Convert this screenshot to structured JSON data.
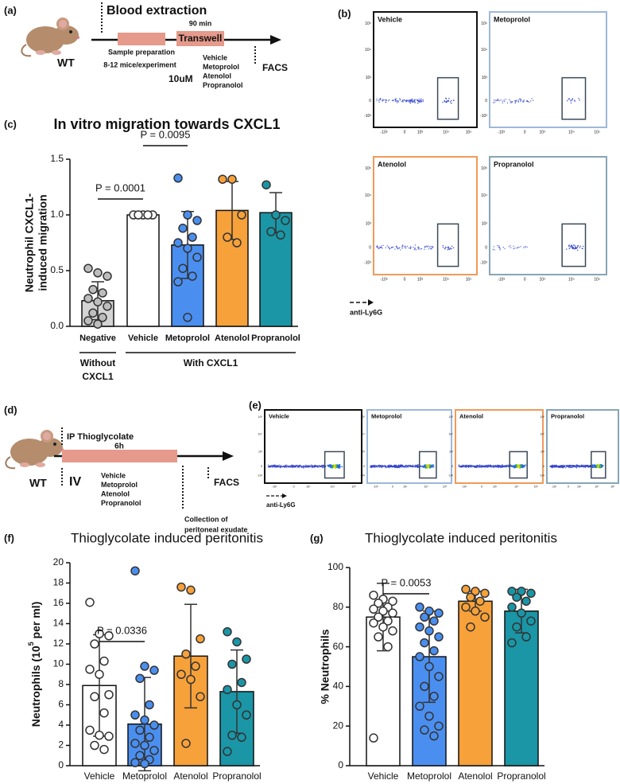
{
  "panel_a": {
    "label": "(a)",
    "title": "Blood extraction",
    "strain": "WT",
    "step1": "Sample preparation",
    "step1_note": "8-12 mice/experiment",
    "step2": "Transwell",
    "step2_time": "90 min",
    "dose": "10uM",
    "treatments": [
      "Vehicle",
      "Metoprolol",
      "Atenolol",
      "Propranolol"
    ],
    "readout": "FACS"
  },
  "panel_b": {
    "label": "(b)",
    "plots": [
      {
        "name": "Vehicle",
        "color": "#111111"
      },
      {
        "name": "Metoprolol",
        "color": "#9db8da"
      },
      {
        "name": "Atenolol",
        "color": "#ef9a5a"
      },
      {
        "name": "Propranolol",
        "color": "#86a6b6"
      }
    ],
    "y_ticks": [
      "10⁵",
      "10⁴",
      "10³",
      "0",
      "-10³"
    ],
    "x_ticks": [
      "-10³",
      "0",
      "10³",
      "10⁴",
      "10⁵"
    ],
    "axis_label": "anti-Ly6G"
  },
  "panel_d": {
    "label": "(d)",
    "injection": "IP Thioglycolate",
    "duration": "6h",
    "strain": "WT",
    "route": "IV",
    "treatments": [
      "Vehicle",
      "Metoprolol",
      "Atenolol",
      "Propranolol"
    ],
    "collection": [
      "Collection of",
      "peritoneal exudate"
    ],
    "readout": "FACS"
  },
  "panel_e": {
    "label": "(e)",
    "plots": [
      {
        "name": "Vehicle",
        "color": "#111111"
      },
      {
        "name": "Metoprolol",
        "color": "#9db8da"
      },
      {
        "name": "Atenolol",
        "color": "#ef9a5a"
      },
      {
        "name": "Propranolol",
        "color": "#86a6b6"
      }
    ],
    "y_ticks": [
      "10⁵",
      "10⁴",
      "10³",
      "0",
      "-10³"
    ],
    "x_ticks": [
      "-10³",
      "0",
      "10³",
      "10⁴",
      "10⁵"
    ],
    "axis_label": "anti-Ly6G"
  },
  "chart_data": [
    {
      "type": "bar",
      "panel_label": "(c)",
      "title": "In vitro migration towards CXCL1",
      "y_label_lines": [
        "Neutrophil CXCL1-",
        "induced migration"
      ],
      "categories": [
        "Negative",
        "Vehicle",
        "Metoprolol",
        "Atenolol",
        "Propranolol"
      ],
      "values": [
        0.23,
        1.0,
        0.73,
        1.04,
        1.02
      ],
      "errors": [
        0.17,
        0,
        0.3,
        0.26,
        0.18
      ],
      "colors": [
        "#d4d4d4",
        "#ffffff",
        "#4a8ff0",
        "#f7a13a",
        "#1a96a6"
      ],
      "points": [
        [
          0.52,
          0.48,
          0.45,
          0.33,
          0.3,
          0.25,
          0.22,
          0.18,
          0.12,
          0.08,
          0.05,
          0.02
        ],
        [
          1.0,
          1.0,
          1.0,
          1.0,
          1.0
        ],
        [
          1.33,
          1.0,
          0.95,
          0.88,
          0.8,
          0.75,
          0.7,
          0.62,
          0.52,
          0.45,
          0.4,
          0.08
        ],
        [
          1.32,
          1.32,
          1.0,
          0.8,
          0.75
        ],
        [
          1.27,
          1.0,
          0.95,
          0.85,
          0.82
        ]
      ],
      "ylim": [
        0,
        1.5
      ],
      "yticks": [
        {
          "value": 0,
          "label": "0.0"
        },
        0.5,
        {
          "value": 1,
          "label": "1.0"
        },
        1.5
      ],
      "annotations": [
        "P = 0.0001",
        "P = 0.0095"
      ],
      "group_labels": [
        [
          "Without",
          "CXCL1"
        ],
        [
          "With CXCL1"
        ]
      ]
    },
    {
      "type": "bar",
      "panel_label": "(f)",
      "title": "Thioglycolate induced peritonitis",
      "y_label_parts": [
        "Neutrophils (10",
        "5",
        " per ml)"
      ],
      "categories": [
        "Vehicle",
        "Metoprolol",
        "Atenolol",
        "Propranolol"
      ],
      "values": [
        7.9,
        4.1,
        10.8,
        7.3
      ],
      "errors": [
        5.0,
        4.6,
        5.1,
        4.1
      ],
      "colors": [
        "#ffffff",
        "#4a8ff0",
        "#f7a13a",
        "#1a96a6"
      ],
      "points": [
        [
          16.1,
          13.0,
          12.8,
          12.0,
          10.3,
          9.5,
          9.0,
          7.0,
          6.8,
          5.2,
          3.5,
          3.0,
          2.9,
          2.0,
          1.6
        ],
        [
          19.2,
          9.8,
          9.4,
          8.6,
          6.0,
          5.0,
          4.5,
          4.0,
          3.5,
          2.8,
          2.2,
          2.0,
          1.5,
          1.0,
          0.6,
          0.3,
          0.2
        ],
        [
          17.6,
          17.3,
          12.5,
          11.0,
          9.8,
          9.0,
          8.5,
          6.8,
          2.2
        ],
        [
          13.2,
          12.2,
          10.5,
          10.0,
          8.2,
          7.5,
          6.0,
          5.0,
          3.0,
          2.8,
          1.4
        ]
      ],
      "ylim": [
        0,
        20
      ],
      "yticks": [
        0,
        2,
        4,
        6,
        8,
        10,
        12,
        14,
        16,
        18,
        20
      ],
      "annotations": [
        "P = 0.0336"
      ]
    },
    {
      "type": "bar",
      "panel_label": "(g)",
      "title": "Thioglycolate induced peritonitis",
      "y_label": "% Neutrophils",
      "categories": [
        "Vehicle",
        "Metoprolol",
        "Atenolol",
        "Propranolol"
      ],
      "values": [
        75,
        55,
        83,
        78
      ],
      "errors": [
        17,
        23,
        5,
        11
      ],
      "colors": [
        "#ffffff",
        "#4a8ff0",
        "#f7a13a",
        "#1a96a6"
      ],
      "points": [
        [
          86,
          84,
          83,
          82,
          80,
          79,
          78,
          77,
          75,
          73,
          72,
          70,
          68,
          65,
          60,
          14
        ],
        [
          80,
          78,
          77,
          75,
          73,
          70,
          68,
          65,
          62,
          58,
          55,
          50,
          45,
          40,
          35,
          30,
          25,
          20,
          18,
          15
        ],
        [
          89,
          88,
          87,
          85,
          83,
          80,
          78,
          75,
          70
        ],
        [
          88,
          88,
          87,
          85,
          83,
          80,
          77,
          73,
          70,
          65,
          62
        ]
      ],
      "ylim": [
        0,
        100
      ],
      "yticks": [
        0,
        20,
        40,
        60,
        80,
        100
      ],
      "annotations": [
        "P = 0.0053"
      ]
    }
  ]
}
